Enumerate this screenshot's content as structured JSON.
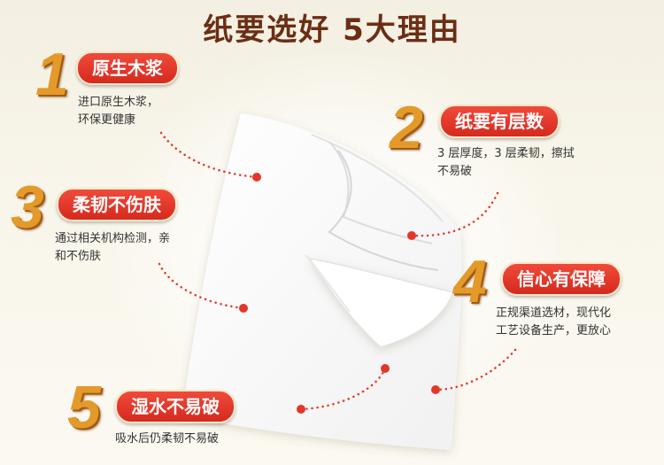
{
  "title": "纸要选好  5大理由",
  "items": [
    {
      "number": "1",
      "label": "原生木浆",
      "desc": "进口原生木浆，\n环保更健康"
    },
    {
      "number": "2",
      "label": "纸要有层数",
      "desc": "3 层厚度，3 层柔韧，擦拭\n不易破"
    },
    {
      "number": "3",
      "label": "柔韧不伤肤",
      "desc": "通过相关机构检测，亲\n和不伤肤"
    },
    {
      "number": "4",
      "label": "信心有保障",
      "desc": "正规渠道选材，现代化\n工艺设备生产，更放心"
    },
    {
      "number": "5",
      "label": "湿水不易破",
      "desc": "吸水后仍柔韧不易破"
    }
  ],
  "colors": {
    "title": "#6b2e14",
    "pill": "#e0372a",
    "number": "#e39a2a",
    "dots": "#e2372a"
  }
}
